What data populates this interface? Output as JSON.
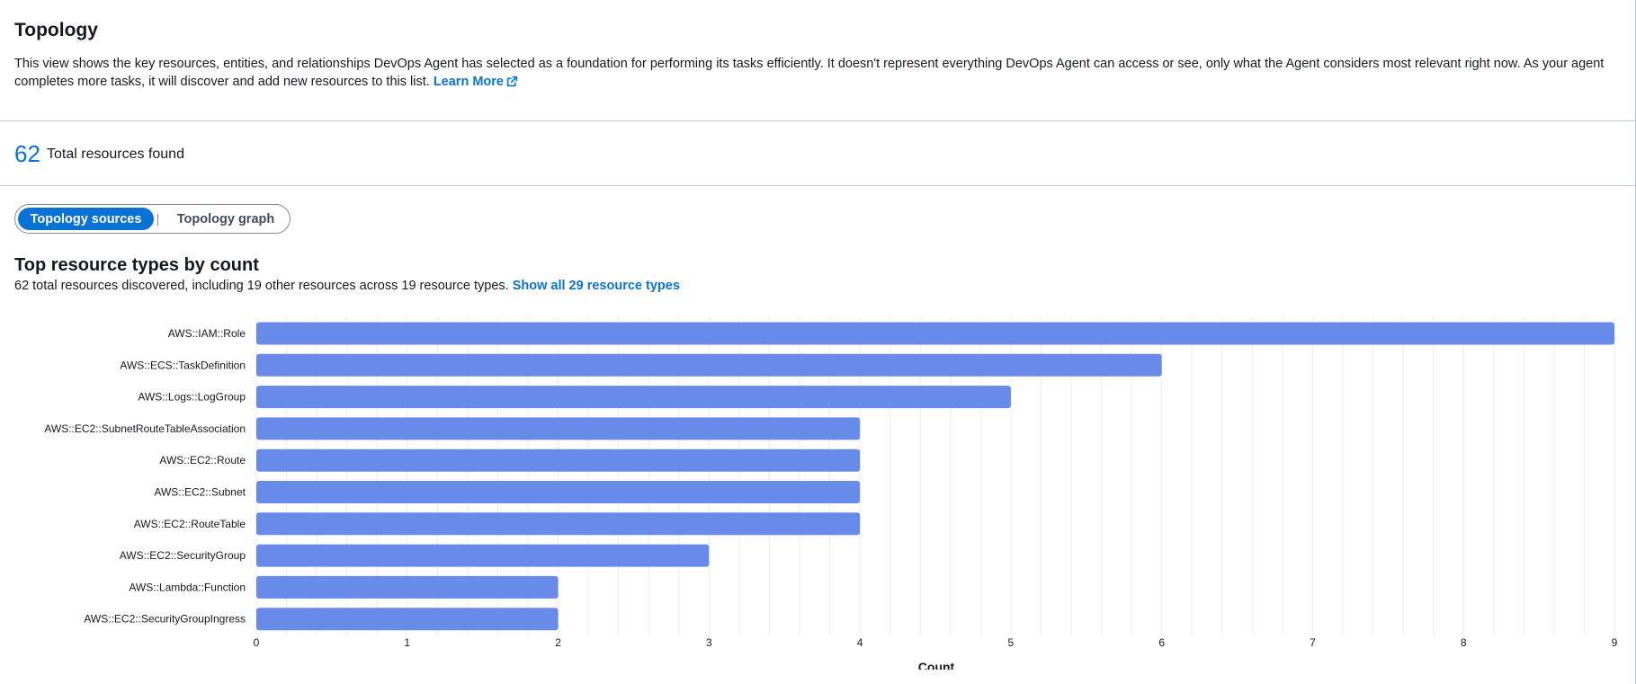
{
  "header": {
    "title": "Topology",
    "description": "This view shows the key resources, entities, and relationships DevOps Agent has selected as a foundation for performing its tasks efficiently. It doesn't represent everything DevOps Agent can access or see, only what the Agent considers most relevant right now. As your agent completes more tasks, it will discover and add new resources to this list.",
    "learn_more_label": "Learn More",
    "external_icon": "external-link-icon"
  },
  "summary": {
    "total_count": "62",
    "total_label": "Total resources found"
  },
  "segmented_control": {
    "options": [
      "Topology sources",
      "Topology graph"
    ],
    "selected": "Topology sources"
  },
  "resource_chart": {
    "title": "Top resource types by count",
    "subtitle": "62 total resources discovered, including 19 other resources across 19 resource types.",
    "show_all_label": "Show all 29 resource types"
  },
  "colors": {
    "bar": "#688ae8",
    "link": "#0972d3",
    "grid": "#e9ebed"
  },
  "chart_data": {
    "type": "bar",
    "orientation": "horizontal",
    "categories": [
      "AWS::IAM::Role",
      "AWS::ECS::TaskDefinition",
      "AWS::Logs::LogGroup",
      "AWS::EC2::SubnetRouteTableAssociation",
      "AWS::EC2::Route",
      "AWS::EC2::Subnet",
      "AWS::EC2::RouteTable",
      "AWS::EC2::SecurityGroup",
      "AWS::Lambda::Function",
      "AWS::EC2::SecurityGroupIngress"
    ],
    "values": [
      9,
      6,
      5,
      4,
      4,
      4,
      4,
      3,
      2,
      2
    ],
    "xlabel": "Count",
    "ylabel": "",
    "xlim": [
      0,
      9
    ],
    "xticks": [
      0,
      1,
      2,
      3,
      4,
      5,
      6,
      7,
      8,
      9
    ],
    "grid": true,
    "legend": "none"
  }
}
